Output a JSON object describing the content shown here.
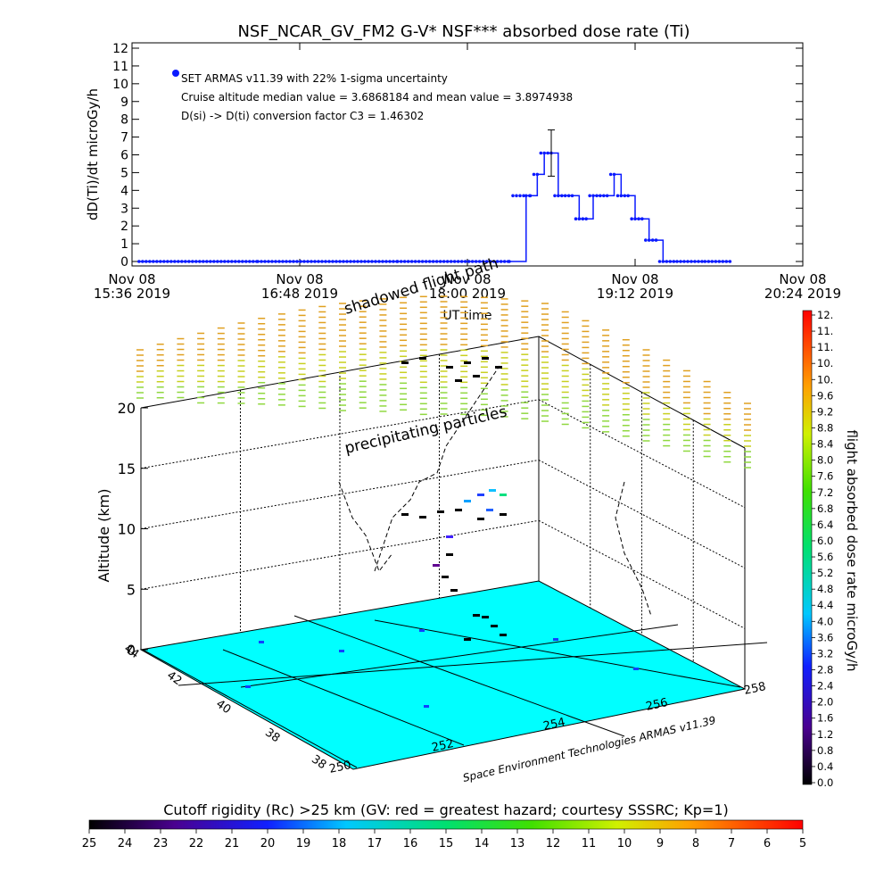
{
  "chart_data": [
    {
      "type": "line",
      "title": "NSF_NCAR_GV_FM2 G-V* NSF*** absorbed dose rate (Ti)",
      "ylabel": "dD(Ti)/dt microGy/h",
      "xlabel": "UT time",
      "ylim": [
        0,
        12
      ],
      "yticks": [
        "0",
        "1",
        "2",
        "3",
        "4",
        "5",
        "6",
        "7",
        "8",
        "9",
        "10",
        "11",
        "12"
      ],
      "xlim_minutes": [
        936,
        1224
      ],
      "xtick_labels": [
        {
          "line1": "Nov 08",
          "line2": "15:36 2019"
        },
        {
          "line1": "Nov 08",
          "line2": "16:48 2019"
        },
        {
          "line1": "Nov 08",
          "line2": "18:00 2019"
        },
        {
          "line1": "Nov 08",
          "line2": "19:12 2019"
        },
        {
          "line1": "Nov 08",
          "line2": "20:24 2019"
        }
      ],
      "legend": {
        "series_name": "SET ARMAS v11.39 with 22% 1-sigma uncertainty",
        "line2": "Cruise altitude median value = 3.6868184 and mean value = 3.8974938",
        "line3": "D(si) -> D(ti) conversion factor C3 = 1.46302",
        "placement": "top-left"
      },
      "series_color": "#0a1aff",
      "points_note": "x in UT hours (decimal), y in microGy/h",
      "x": [
        15.65,
        16.5,
        17.5,
        18.3,
        18.42,
        18.45,
        18.5,
        18.55,
        18.6,
        18.65,
        18.7,
        18.75,
        18.8,
        18.85,
        18.9,
        18.95,
        19.0,
        19.05,
        19.1,
        19.15,
        19.2,
        19.25,
        19.3,
        19.35,
        19.4,
        19.5,
        19.7,
        19.88
      ],
      "values": [
        0,
        0,
        0,
        0,
        3.7,
        3.7,
        4.9,
        6.1,
        6.1,
        3.7,
        3.7,
        3.7,
        2.4,
        2.4,
        3.7,
        3.7,
        3.7,
        4.9,
        3.7,
        3.7,
        2.4,
        2.4,
        1.2,
        1.2,
        0,
        0,
        0,
        0
      ],
      "error_bar": {
        "x": 18.6,
        "y": 6.1,
        "plus": 1.3,
        "minus": 1.3
      }
    },
    {
      "type": "scatter",
      "subtype": "3d-trajectory",
      "zlabel": "Altitude (km)",
      "zticks": [
        "0",
        "5",
        "10",
        "15",
        "20"
      ],
      "lat_ticks": [
        "38",
        "38",
        "40",
        "42",
        "44"
      ],
      "lon_ticks": [
        "250",
        "252",
        "254",
        "256",
        "258"
      ],
      "annotations": [
        "shadowed flight path",
        "precipitating particles"
      ],
      "credit": "Space Environment Technologies ARMAS v11.39",
      "floor_color": "#00ffff"
    },
    {
      "type": "heatmap",
      "subtype": "colorbar-vertical",
      "label": "flight absorbed dose rate microGy/h",
      "ticks": [
        "0.0",
        "0.4",
        "0.8",
        "1.2",
        "1.6",
        "2.0",
        "2.4",
        "2.8",
        "3.2",
        "3.6",
        "4.0",
        "4.4",
        "4.8",
        "5.2",
        "5.6",
        "6.0",
        "6.4",
        "6.8",
        "7.2",
        "7.6",
        "8.0",
        "8.4",
        "8.8",
        "9.2",
        "9.6",
        "10.",
        "10.",
        "11.",
        "11.",
        "12."
      ],
      "range": [
        0,
        12
      ]
    },
    {
      "type": "heatmap",
      "subtype": "colorbar-horizontal",
      "label": "Cutoff rigidity (Rc) >25 km (GV: red = greatest hazard; courtesy SSSRC; Kp=1)",
      "ticks": [
        "25",
        "24",
        "23",
        "22",
        "21",
        "20",
        "19",
        "18",
        "17",
        "16",
        "15",
        "14",
        "13",
        "12",
        "11",
        "10",
        "9",
        "8",
        "7",
        "6",
        "5"
      ],
      "range": [
        25,
        5
      ]
    }
  ]
}
